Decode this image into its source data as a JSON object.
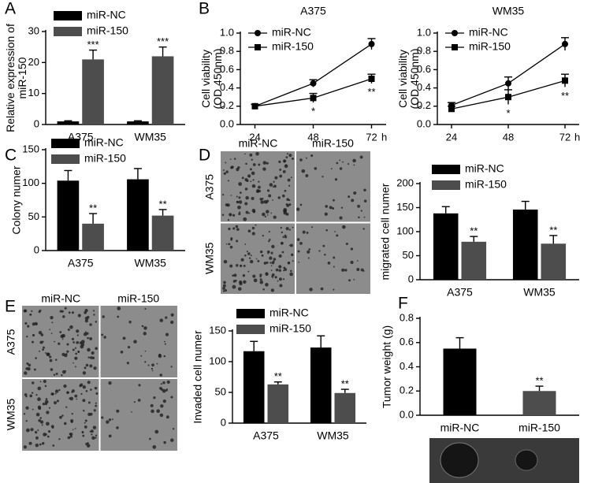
{
  "chart_data": [
    {
      "type": "bar",
      "panel": "A",
      "ylabel": [
        "Relative expression of",
        "miR-150"
      ],
      "categories": [
        "A375",
        "WM35"
      ],
      "ylim": [
        0,
        30
      ],
      "yticks": [
        0,
        10,
        20,
        30
      ],
      "series": [
        {
          "name": "miR-NC",
          "color": "#000000",
          "values": [
            1,
            1
          ],
          "errors": [
            0.2,
            0.2
          ]
        },
        {
          "name": "miR-150",
          "color": "#4d4d4d",
          "values": [
            21,
            22
          ],
          "errors": [
            3,
            3
          ],
          "significance": [
            "***",
            "***"
          ]
        }
      ]
    },
    {
      "type": "line",
      "panel": "B",
      "title": "A375",
      "ylabel": [
        "Cell viability",
        "(OD 450nm)"
      ],
      "xlabel": "h",
      "x": [
        24,
        48,
        72
      ],
      "xlim": [
        18,
        78
      ],
      "xticks": [
        24,
        48,
        72
      ],
      "ylim": [
        0,
        1
      ],
      "yticks": [
        {
          "value": 0,
          "label": "0.0"
        },
        {
          "value": 0.2,
          "label": "0.2"
        },
        {
          "value": 0.4,
          "label": "0.4"
        },
        {
          "value": 0.6,
          "label": "0.6"
        },
        {
          "value": 0.8,
          "label": "0.8"
        },
        {
          "value": 1,
          "label": "1.0"
        }
      ],
      "series": [
        {
          "name": "miR-NC",
          "color": "#000000",
          "marker": "circle",
          "values": [
            0.2,
            0.45,
            0.88
          ],
          "errors": [
            0.02,
            0.04,
            0.06
          ]
        },
        {
          "name": "miR-150",
          "color": "#000000",
          "marker": "square",
          "values": [
            0.2,
            0.29,
            0.5
          ],
          "errors": [
            0.02,
            0.05,
            0.05
          ],
          "significance": [
            null,
            "*",
            "**"
          ]
        }
      ]
    },
    {
      "type": "line",
      "title": "WM35",
      "ylabel": [
        "Cell viability",
        "(OD 450nm)"
      ],
      "xlabel": "h",
      "x": [
        24,
        48,
        72
      ],
      "xlim": [
        18,
        78
      ],
      "xticks": [
        24,
        48,
        72
      ],
      "ylim": [
        0,
        1
      ],
      "yticks": [
        {
          "value": 0,
          "label": "0.0"
        },
        {
          "value": 0.2,
          "label": "0.2"
        },
        {
          "value": 0.4,
          "label": "0.4"
        },
        {
          "value": 0.6,
          "label": "0.6"
        },
        {
          "value": 0.8,
          "label": "0.8"
        },
        {
          "value": 1,
          "label": "1.0"
        }
      ],
      "series": [
        {
          "name": "miR-NC",
          "color": "#000000",
          "marker": "circle",
          "values": [
            0.21,
            0.45,
            0.88
          ],
          "errors": [
            0.03,
            0.07,
            0.07
          ]
        },
        {
          "name": "miR-150",
          "color": "#000000",
          "marker": "square",
          "values": [
            0.17,
            0.3,
            0.48
          ],
          "errors": [
            0.03,
            0.08,
            0.07
          ],
          "significance": [
            null,
            "*",
            "**"
          ]
        }
      ]
    },
    {
      "type": "bar",
      "panel": "C",
      "ylabel": [
        "Colony numer"
      ],
      "categories": [
        "A375",
        "WM35"
      ],
      "ylim": [
        0,
        150
      ],
      "yticks": [
        0,
        50,
        100,
        150
      ],
      "series": [
        {
          "name": "miR-NC",
          "color": "#000000",
          "values": [
            104,
            106
          ],
          "errors": [
            15,
            16
          ]
        },
        {
          "name": "miR-150",
          "color": "#4d4d4d",
          "values": [
            40,
            52
          ],
          "errors": [
            15,
            9
          ],
          "significance": [
            "**",
            "**"
          ]
        }
      ]
    },
    {
      "type": "bar",
      "panel": "D",
      "ylabel": [
        "migrated cell numer"
      ],
      "image_columns": [
        "miR-NC",
        "miR-150"
      ],
      "image_rows": [
        "A375",
        "WM35"
      ],
      "categories": [
        "A375",
        "WM35"
      ],
      "ylim": [
        0,
        200
      ],
      "yticks": [
        0,
        50,
        100,
        150,
        200
      ],
      "series": [
        {
          "name": "miR-NC",
          "color": "#000000",
          "values": [
            138,
            146
          ],
          "errors": [
            14,
            17
          ]
        },
        {
          "name": "miR-150",
          "color": "#4d4d4d",
          "values": [
            79,
            75
          ],
          "errors": [
            11,
            17
          ],
          "significance": [
            "**",
            "**"
          ]
        }
      ]
    },
    {
      "type": "bar",
      "panel": "E",
      "ylabel": [
        "Invaded cell numer"
      ],
      "image_columns": [
        "miR-NC",
        "miR-150"
      ],
      "image_rows": [
        "A375",
        "WM35"
      ],
      "categories": [
        "A375",
        "WM35"
      ],
      "ylim": [
        0,
        150
      ],
      "yticks": [
        0,
        50,
        100,
        150
      ],
      "series": [
        {
          "name": "miR-NC",
          "color": "#000000",
          "values": [
            117,
            123
          ],
          "errors": [
            16,
            19
          ]
        },
        {
          "name": "miR-150",
          "color": "#4d4d4d",
          "values": [
            63,
            49
          ],
          "errors": [
            4,
            6
          ],
          "significance": [
            "**",
            "**"
          ]
        }
      ]
    },
    {
      "type": "bar",
      "panel": "F",
      "ylabel": [
        "Tumor weight (g)"
      ],
      "categories": [
        "miR-NC",
        "miR-150"
      ],
      "ylim": [
        0,
        0.8
      ],
      "yticks": [
        {
          "value": 0,
          "label": "0.0"
        },
        {
          "value": 0.2,
          "label": "0.2"
        },
        {
          "value": 0.4,
          "label": "0.4"
        },
        {
          "value": 0.6,
          "label": "0.6"
        },
        {
          "value": 0.8,
          "label": "0.8"
        }
      ],
      "series": [
        {
          "colors": [
            "#000000",
            "#4d4d4d"
          ],
          "values": [
            0.55,
            0.2
          ],
          "errors": [
            0.09,
            0.04
          ],
          "significance": [
            null,
            "**"
          ]
        }
      ]
    }
  ]
}
